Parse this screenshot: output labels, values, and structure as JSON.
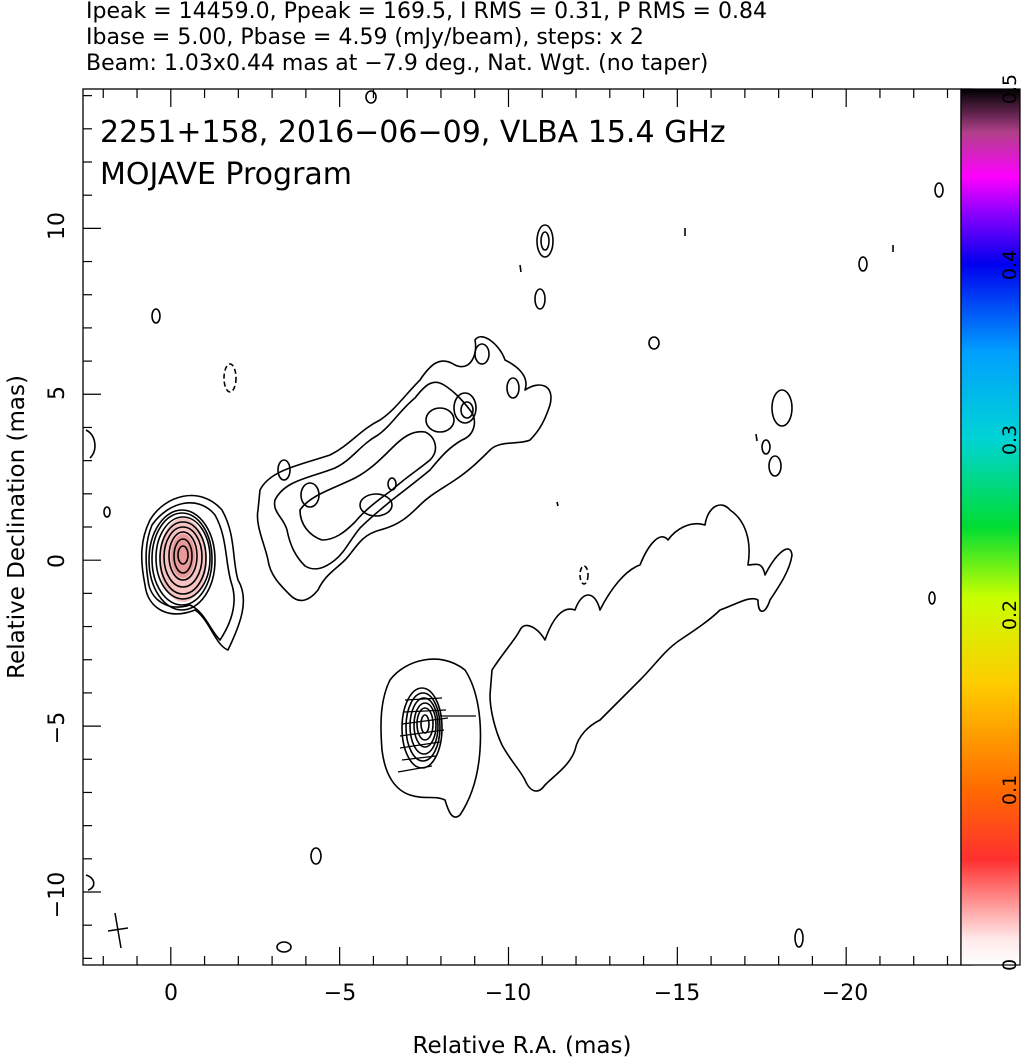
{
  "header": {
    "line1": "Ipeak = 14459.0, Ppeak = 169.5, I RMS = 0.31, P RMS = 0.84",
    "line2": "Ibase = 5.00, Pbase = 4.59 (mJy/beam), steps: x 2",
    "line3": "Beam: 1.03x0.44 mas at −7.9 deg., Nat. Wgt. (no taper)"
  },
  "chart_data": {
    "type": "contour",
    "title_line1": "2251+158, 2016−06−09, VLBA 15.4 GHz",
    "title_line2": "MOJAVE Program",
    "xlabel": "Relative R.A. (mas)",
    "ylabel": "Relative Declination (mas)",
    "xlim": [
      2.6,
      -23.4
    ],
    "ylim": [
      -12.2,
      14.2
    ],
    "x_ticks": [
      0,
      -5,
      -10,
      -15,
      -20
    ],
    "x_tick_labels": [
      "0",
      "−5",
      "−10",
      "−15",
      "−20"
    ],
    "y_ticks": [
      -10,
      -5,
      0,
      5,
      10
    ],
    "y_tick_labels": [
      "−10",
      "−5",
      "0",
      "5",
      "10"
    ],
    "colorbar": {
      "range": [
        0,
        0.5
      ],
      "ticks": [
        0,
        0.1,
        0.2,
        0.3,
        0.4,
        0.5
      ],
      "tick_labels": [
        "0",
        "0.1",
        "0.2",
        "0.3",
        "0.4",
        "0.5"
      ]
    },
    "core": {
      "x": -0.3,
      "y": 0.2,
      "peak_mJy_per_beam": 14459.0
    },
    "secondary_component": {
      "x": -7.5,
      "y": -4.9
    },
    "base_contour_mJy_per_beam": 5.0,
    "contour_step_factor": 2,
    "beam": {
      "major_mas": 1.03,
      "minor_mas": 0.44,
      "pa_deg": -7.9
    }
  }
}
